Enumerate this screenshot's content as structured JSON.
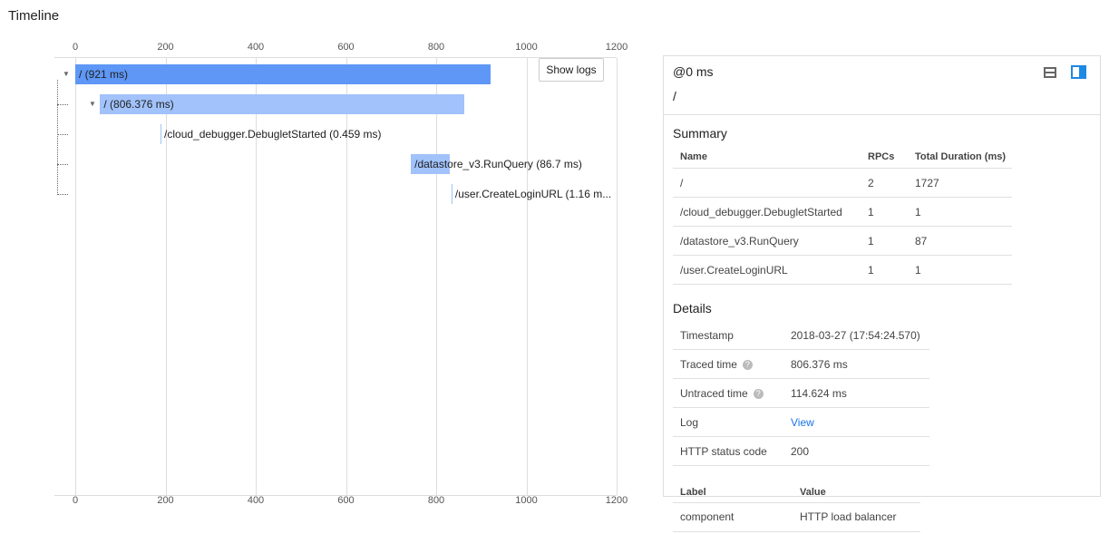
{
  "title": "Timeline",
  "axis": {
    "min": 0,
    "max": 1200,
    "ticks": [
      "0",
      "200",
      "400",
      "600",
      "800",
      "1000",
      "1200"
    ]
  },
  "show_logs": "Show logs",
  "spans": [
    {
      "label": "/ (921 ms)",
      "start": 0,
      "duration": 921,
      "depth": 0,
      "expandable": true,
      "color": "#5e97f6"
    },
    {
      "label": "/ (806.376 ms)",
      "start": 55,
      "duration": 806.376,
      "depth": 1,
      "expandable": true,
      "color": "#a1c2fa"
    },
    {
      "label": "/cloud_debugger.DebugletStarted (0.459 ms)",
      "start": 189,
      "duration": 0.459,
      "depth": 2,
      "expandable": false,
      "color": "#a1c2fa"
    },
    {
      "label": "/datastore_v3.RunQuery (86.7 ms)",
      "start": 744,
      "duration": 86.7,
      "depth": 2,
      "expandable": false,
      "color": "#a1c2fa"
    },
    {
      "label": "/user.CreateLoginURL (1.16 m...",
      "start": 834,
      "duration": 1.16,
      "depth": 2,
      "expandable": false,
      "color": "#a1c2fa"
    }
  ],
  "panel": {
    "time": "@0 ms",
    "name": "/",
    "summary_title": "Summary",
    "summary_headers": [
      "Name",
      "RPCs",
      "Total Duration (ms)"
    ],
    "summary_rows": [
      [
        "/",
        "2",
        "1727"
      ],
      [
        "/cloud_debugger.DebugletStarted",
        "1",
        "1"
      ],
      [
        "/datastore_v3.RunQuery",
        "1",
        "87"
      ],
      [
        "/user.CreateLoginURL",
        "1",
        "1"
      ]
    ],
    "details_title": "Details",
    "details": [
      {
        "k": "Timestamp",
        "v": "2018-03-27 (17:54:24.570)"
      },
      {
        "k": "Traced time",
        "v": "806.376 ms",
        "help": "?"
      },
      {
        "k": "Untraced time",
        "v": "114.624 ms",
        "help": "?"
      },
      {
        "k": "Log",
        "v": "View",
        "link": true
      },
      {
        "k": "HTTP status code",
        "v": "200"
      }
    ],
    "label_headers": [
      "Label",
      "Value"
    ],
    "labels": [
      [
        "component",
        "HTTP load balancer"
      ]
    ]
  },
  "accent": "#1e88e5"
}
